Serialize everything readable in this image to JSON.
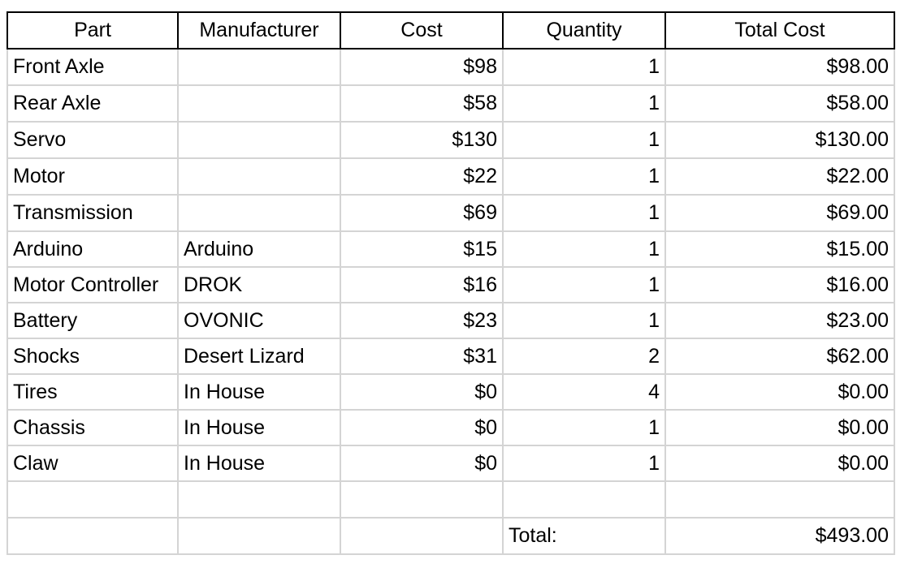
{
  "headers": {
    "part": "Part",
    "manufacturer": "Manufacturer",
    "cost": "Cost",
    "quantity": "Quantity",
    "total_cost": "Total Cost"
  },
  "rows": [
    {
      "part": "Front Axle",
      "manufacturer": "",
      "cost": "$98",
      "quantity": "1",
      "total": "$98.00"
    },
    {
      "part": "Rear Axle",
      "manufacturer": "",
      "cost": "$58",
      "quantity": "1",
      "total": "$58.00"
    },
    {
      "part": "Servo",
      "manufacturer": "",
      "cost": "$130",
      "quantity": "1",
      "total": "$130.00"
    },
    {
      "part": "Motor",
      "manufacturer": "",
      "cost": "$22",
      "quantity": "1",
      "total": "$22.00"
    },
    {
      "part": "Transmission",
      "manufacturer": "",
      "cost": "$69",
      "quantity": "1",
      "total": "$69.00"
    },
    {
      "part": "Arduino",
      "manufacturer": "Arduino",
      "cost": "$15",
      "quantity": "1",
      "total": "$15.00"
    },
    {
      "part": "Motor Controller",
      "manufacturer": "DROK",
      "cost": "$16",
      "quantity": "1",
      "total": "$16.00"
    },
    {
      "part": "Battery",
      "manufacturer": "OVONIC",
      "cost": "$23",
      "quantity": "1",
      "total": "$23.00"
    },
    {
      "part": "Shocks",
      "manufacturer": "Desert Lizard",
      "cost": "$31",
      "quantity": "2",
      "total": "$62.00"
    },
    {
      "part": "Tires",
      "manufacturer": "In House",
      "cost": "$0",
      "quantity": "4",
      "total": "$0.00"
    },
    {
      "part": "Chassis",
      "manufacturer": "In House",
      "cost": "$0",
      "quantity": "1",
      "total": "$0.00"
    },
    {
      "part": "Claw",
      "manufacturer": "In House",
      "cost": "$0",
      "quantity": "1",
      "total": "$0.00"
    },
    {
      "part": "",
      "manufacturer": "",
      "cost": "",
      "quantity": "",
      "total": ""
    }
  ],
  "footer": {
    "total_label": "Total:",
    "total_value": "$493.00"
  }
}
